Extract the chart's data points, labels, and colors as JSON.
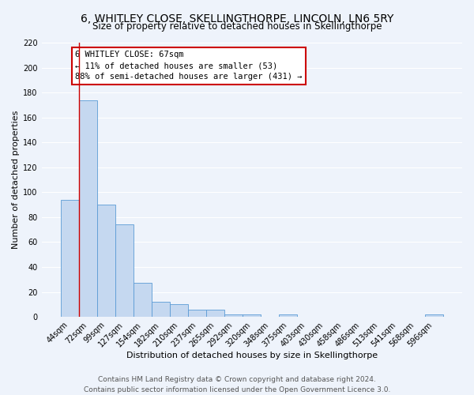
{
  "title": "6, WHITLEY CLOSE, SKELLINGTHORPE, LINCOLN, LN6 5RY",
  "subtitle": "Size of property relative to detached houses in Skellingthorpe",
  "xlabel": "Distribution of detached houses by size in Skellingthorpe",
  "ylabel": "Number of detached properties",
  "bar_labels": [
    "44sqm",
    "72sqm",
    "99sqm",
    "127sqm",
    "154sqm",
    "182sqm",
    "210sqm",
    "237sqm",
    "265sqm",
    "292sqm",
    "320sqm",
    "348sqm",
    "375sqm",
    "403sqm",
    "430sqm",
    "458sqm",
    "486sqm",
    "513sqm",
    "541sqm",
    "568sqm",
    "596sqm"
  ],
  "bar_heights": [
    94,
    174,
    90,
    74,
    27,
    12,
    10,
    6,
    6,
    2,
    2,
    0,
    2,
    0,
    0,
    0,
    0,
    0,
    0,
    0,
    2
  ],
  "bar_color": "#c5d8f0",
  "bar_edge_color": "#5b9bd5",
  "vline_color": "#cc0000",
  "annotation_text": "6 WHITLEY CLOSE: 67sqm\n← 11% of detached houses are smaller (53)\n88% of semi-detached houses are larger (431) →",
  "annotation_box_color": "#ffffff",
  "annotation_box_edge_color": "#cc0000",
  "ylim": [
    0,
    220
  ],
  "yticks": [
    0,
    20,
    40,
    60,
    80,
    100,
    120,
    140,
    160,
    180,
    200,
    220
  ],
  "footer_line1": "Contains HM Land Registry data © Crown copyright and database right 2024.",
  "footer_line2": "Contains public sector information licensed under the Open Government Licence 3.0.",
  "bg_color": "#eef3fb",
  "grid_color": "#ffffff",
  "title_fontsize": 10,
  "subtitle_fontsize": 8.5,
  "axis_label_fontsize": 8,
  "tick_fontsize": 7,
  "footer_fontsize": 6.5
}
